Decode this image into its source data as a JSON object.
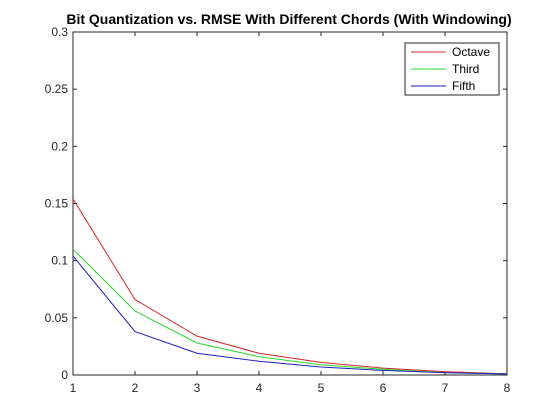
{
  "chart_data": {
    "type": "line",
    "title": "Bit Quantization vs. RMSE With Different Chords (With Windowing)",
    "xlabel": "",
    "ylabel": "",
    "x": [
      1,
      2,
      3,
      4,
      5,
      6,
      7,
      8
    ],
    "xlim": [
      1,
      8
    ],
    "ylim": [
      0,
      0.3
    ],
    "xticks": [
      "1",
      "2",
      "3",
      "4",
      "5",
      "6",
      "7",
      "8"
    ],
    "yticks": [
      "0",
      "0.05",
      "0.1",
      "0.15",
      "0.2",
      "0.25",
      "0.3"
    ],
    "grid": false,
    "legend": "top-right",
    "series": [
      {
        "name": "Octave",
        "color": "#d62728",
        "values": [
          0.154,
          0.066,
          0.034,
          0.019,
          0.011,
          0.006,
          0.003,
          0.001
        ]
      },
      {
        "name": "Third",
        "color": "#2ed82e",
        "values": [
          0.11,
          0.056,
          0.028,
          0.016,
          0.009,
          0.005,
          0.002,
          0.001
        ]
      },
      {
        "name": "Fifth",
        "color": "#1f1fbf",
        "values": [
          0.104,
          0.038,
          0.019,
          0.012,
          0.007,
          0.004,
          0.002,
          0.001
        ]
      }
    ]
  }
}
